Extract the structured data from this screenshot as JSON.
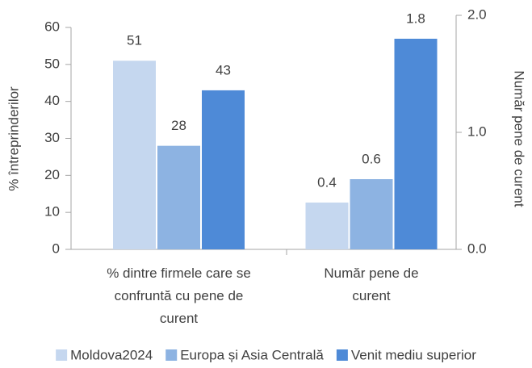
{
  "chart_data": {
    "type": "bar",
    "categories": [
      "% dintre firmele care se confruntă cu pene de curent",
      "Număr pene de curent"
    ],
    "category_axes": [
      "y",
      "y2"
    ],
    "series": [
      {
        "name": "Moldova2024",
        "color": "#c5d7ef",
        "values": [
          51,
          0.4
        ]
      },
      {
        "name": "Europa și Asia Centrală",
        "color": "#8db3e2",
        "values": [
          28,
          0.6
        ]
      },
      {
        "name": "Venit mediu superior",
        "color": "#4e8ad7",
        "values": [
          43,
          1.8
        ]
      }
    ],
    "ylabel": "% întreprinderilor",
    "y2label": "Număr pene de curent",
    "ylim": [
      0,
      60
    ],
    "yticks": [
      0,
      10,
      20,
      30,
      40,
      50,
      60
    ],
    "y2lim": [
      0,
      2
    ],
    "y2ticks": [
      {
        "value": 0,
        "label": "0.0"
      },
      {
        "value": 1,
        "label": "1.0"
      },
      {
        "value": 2,
        "label": "2.0"
      }
    ],
    "legend": "bottom"
  }
}
